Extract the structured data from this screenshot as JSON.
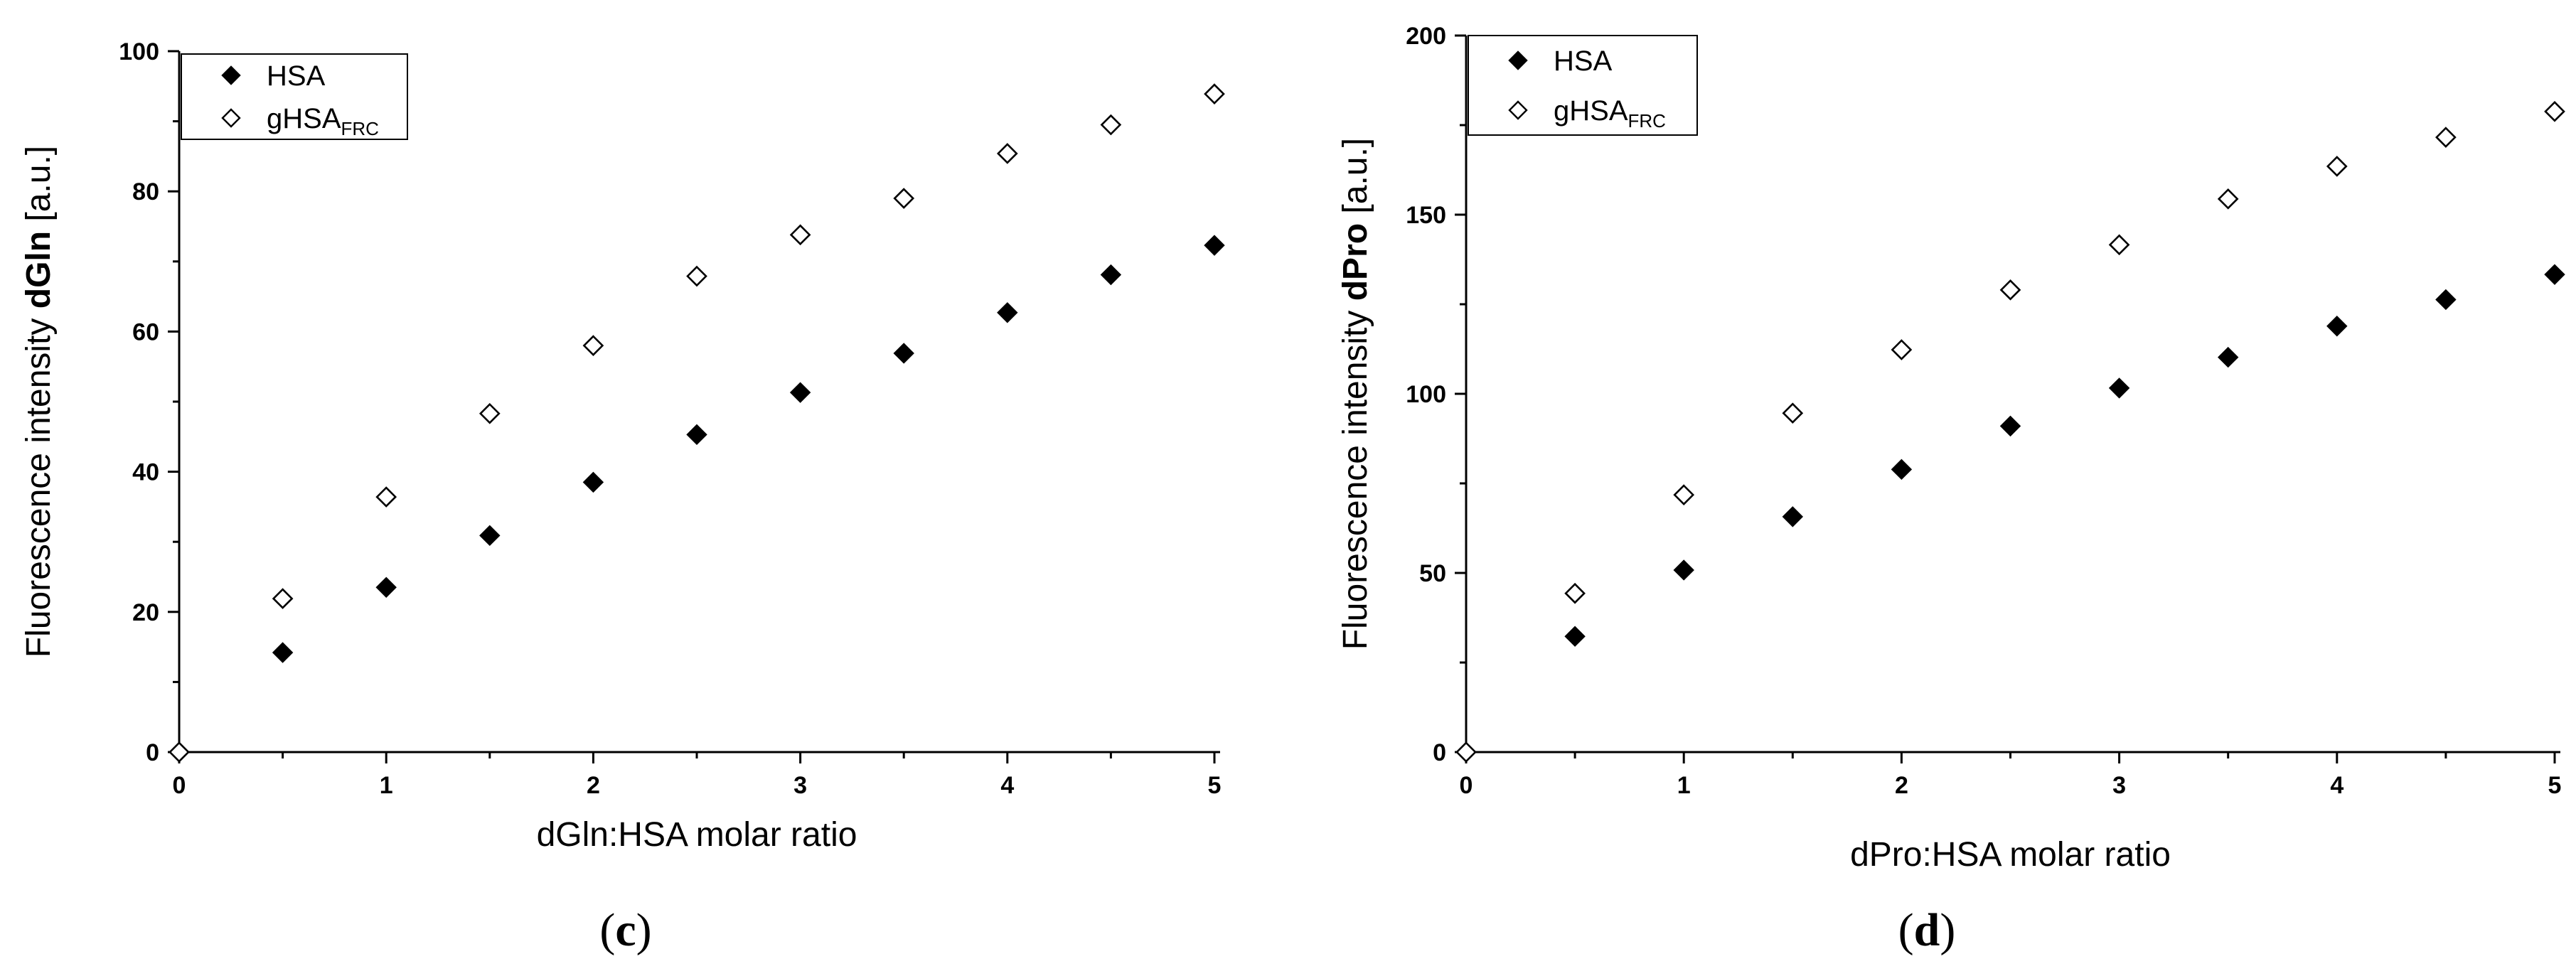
{
  "chart_data": [
    {
      "type": "scatter",
      "panel_label": "c",
      "xlabel": "dGln:HSA molar ratio",
      "ylabel": {
        "prefix": "Fluorescence intensity ",
        "bold": "dGln",
        "suffix": " [a.u.]"
      },
      "xlim": [
        0,
        5
      ],
      "ylim": [
        0,
        100
      ],
      "xticks": [
        "0",
        "1",
        "2",
        "3",
        "4",
        "5"
      ],
      "yticks": [
        "0",
        "20",
        "40",
        "60",
        "80",
        "100"
      ],
      "grid": false,
      "legend_position": "top-left",
      "x": [
        0,
        0.5,
        1,
        1.5,
        2,
        2.5,
        3,
        3.5,
        4,
        4.5,
        5
      ],
      "series": [
        {
          "name": "HSA",
          "marker": "filled-diamond",
          "values": [
            0,
            14.2,
            23.5,
            30.9,
            38.5,
            45.3,
            51.3,
            56.9,
            62.7,
            68.1,
            72.3
          ]
        },
        {
          "name": "gHSA",
          "name_subscript": "FRC",
          "marker": "open-diamond",
          "values": [
            0,
            21.9,
            36.4,
            48.3,
            58.0,
            67.9,
            73.8,
            79.0,
            85.4,
            89.5,
            93.9
          ]
        }
      ]
    },
    {
      "type": "scatter",
      "panel_label": "d",
      "xlabel": "dPro:HSA molar ratio",
      "ylabel": {
        "prefix": "Fluorescence intensity ",
        "bold": "dPro",
        "suffix": " [a.u.]"
      },
      "xlim": [
        0,
        5
      ],
      "ylim": [
        0,
        200
      ],
      "xticks": [
        "0",
        "1",
        "2",
        "3",
        "4",
        "5"
      ],
      "yticks": [
        "0",
        "50",
        "100",
        "150",
        "200"
      ],
      "grid": false,
      "legend_position": "top-left",
      "x": [
        0,
        0.5,
        1,
        1.5,
        2,
        2.5,
        3,
        3.5,
        4,
        4.5,
        5
      ],
      "series": [
        {
          "name": "HSA",
          "marker": "filled-diamond",
          "values": [
            0,
            32.3,
            50.8,
            65.7,
            78.9,
            91.0,
            101.6,
            110.2,
            118.9,
            126.3,
            133.3
          ]
        },
        {
          "name": "gHSA",
          "name_subscript": "FRC",
          "marker": "open-diamond",
          "values": [
            0,
            44.3,
            71.8,
            94.6,
            112.3,
            129.0,
            141.6,
            154.4,
            163.5,
            171.6,
            178.8
          ]
        }
      ]
    }
  ]
}
